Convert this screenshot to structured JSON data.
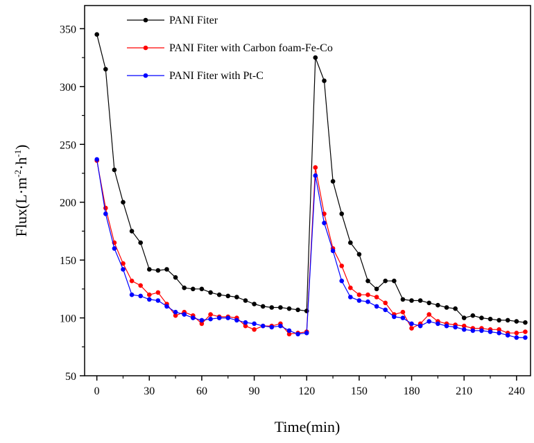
{
  "chart_data": {
    "type": "line",
    "title": "",
    "xlabel": "Time(min)",
    "ylabel_main": "Flux(L·m",
    "ylabel_sup1": "-2",
    "ylabel_mid": "·h",
    "ylabel_sup2": "-1",
    "ylabel_end": ")",
    "xlim": [
      -7,
      248
    ],
    "ylim": [
      50,
      370
    ],
    "xticks": [
      0,
      30,
      60,
      90,
      120,
      150,
      180,
      210,
      240
    ],
    "yticks": [
      50,
      100,
      150,
      200,
      250,
      300,
      350
    ],
    "legend_position": "top-left",
    "grid": false,
    "series": [
      {
        "name": "PANI Fiter",
        "color": "#000000",
        "x": [
          0,
          5,
          10,
          15,
          20,
          25,
          30,
          35,
          40,
          45,
          50,
          55,
          60,
          65,
          70,
          75,
          80,
          85,
          90,
          95,
          100,
          105,
          110,
          115,
          120,
          125,
          130,
          135,
          140,
          145,
          150,
          155,
          160,
          165,
          170,
          175,
          180,
          185,
          190,
          195,
          200,
          205,
          210,
          215,
          220,
          225,
          230,
          235,
          240,
          245
        ],
        "values": [
          345,
          315,
          228,
          200,
          175,
          165,
          142,
          141,
          142,
          135,
          126,
          125,
          125,
          122,
          120,
          119,
          118,
          115,
          112,
          110,
          109,
          109,
          108,
          107,
          106,
          325,
          305,
          218,
          190,
          165,
          155,
          132,
          125,
          132,
          132,
          116,
          115,
          115,
          113,
          111,
          109,
          108,
          100,
          102,
          100,
          99,
          98,
          98,
          97,
          96
        ]
      },
      {
        "name": "PANI Fiter with Carbon foam-Fe-Co",
        "color": "#ff0000",
        "x": [
          0,
          5,
          10,
          15,
          20,
          25,
          30,
          35,
          40,
          45,
          50,
          55,
          60,
          65,
          70,
          75,
          80,
          85,
          90,
          95,
          100,
          105,
          110,
          115,
          120,
          125,
          130,
          135,
          140,
          145,
          150,
          155,
          160,
          165,
          170,
          175,
          180,
          185,
          190,
          195,
          200,
          205,
          210,
          215,
          220,
          225,
          230,
          235,
          240,
          245
        ],
        "values": [
          236,
          195,
          165,
          147,
          132,
          128,
          120,
          122,
          112,
          102,
          105,
          102,
          95,
          103,
          101,
          101,
          100,
          93,
          90,
          93,
          93,
          95,
          86,
          87,
          88,
          230,
          190,
          160,
          145,
          126,
          120,
          120,
          118,
          113,
          103,
          105,
          91,
          95,
          103,
          97,
          95,
          94,
          93,
          91,
          91,
          90,
          90,
          87,
          87,
          88
        ]
      },
      {
        "name": "PANI Fiter with Pt-C",
        "color": "#0000ff",
        "x": [
          0,
          5,
          10,
          15,
          20,
          25,
          30,
          35,
          40,
          45,
          50,
          55,
          60,
          65,
          70,
          75,
          80,
          85,
          90,
          95,
          100,
          105,
          110,
          115,
          120,
          125,
          130,
          135,
          140,
          145,
          150,
          155,
          160,
          165,
          170,
          175,
          180,
          185,
          190,
          195,
          200,
          205,
          210,
          215,
          220,
          225,
          230,
          235,
          240,
          245
        ],
        "values": [
          237,
          190,
          160,
          142,
          120,
          119,
          116,
          115,
          110,
          105,
          103,
          100,
          98,
          99,
          100,
          100,
          98,
          96,
          95,
          93,
          92,
          93,
          89,
          86,
          87,
          223,
          182,
          158,
          132,
          118,
          115,
          114,
          110,
          107,
          101,
          100,
          95,
          93,
          97,
          95,
          93,
          92,
          90,
          89,
          89,
          88,
          87,
          85,
          83,
          83
        ]
      }
    ]
  }
}
